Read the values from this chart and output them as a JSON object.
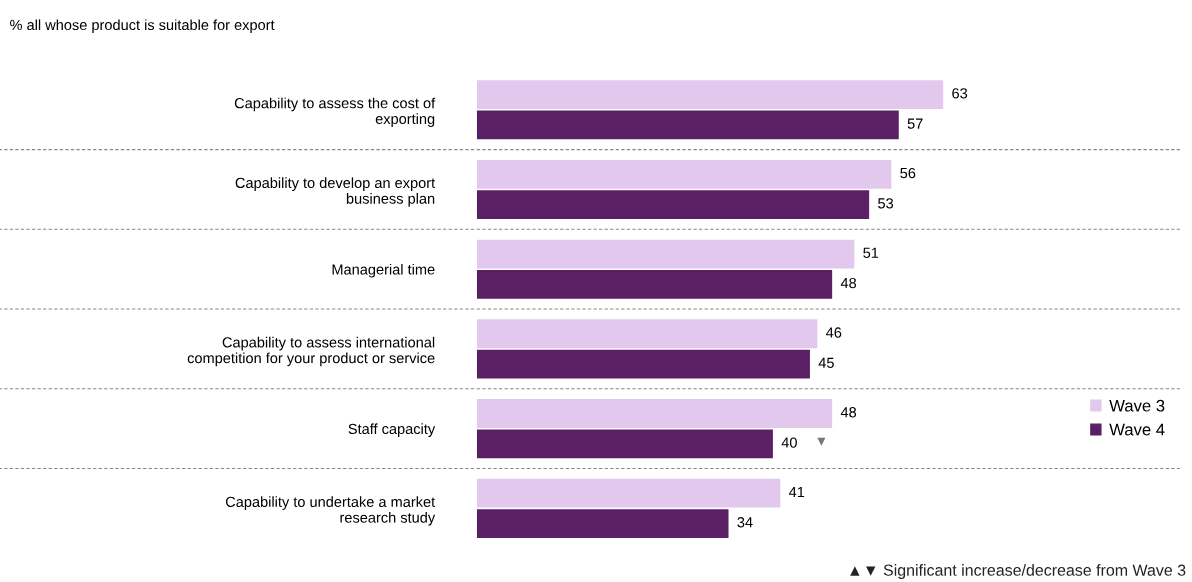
{
  "chart_data": {
    "type": "bar",
    "orientation": "horizontal",
    "title": "% all whose product is suitable for export",
    "categories": [
      "Capability to assess the cost of\nexporting",
      "Capability to develop an export\nbusiness plan",
      "Managerial time",
      "Capability to assess international\ncompetition for your product or service",
      "Staff capacity",
      "Capability to undertake a market\nresearch study"
    ],
    "series": [
      {
        "name": "Wave 3",
        "color": "#e3c8ee",
        "values": [
          63,
          56,
          51,
          46,
          48,
          41
        ]
      },
      {
        "name": "Wave 4",
        "color": "#5b1f66",
        "values": [
          57,
          53,
          48,
          45,
          40,
          34
        ]
      }
    ],
    "xlim": [
      0,
      95
    ],
    "data_labels": true,
    "grid": "y",
    "legend": "right",
    "tick_labels": "y",
    "annotations": [
      "▼",
      "▲▼ Significant increase/decrease from Wave 3"
    ]
  }
}
